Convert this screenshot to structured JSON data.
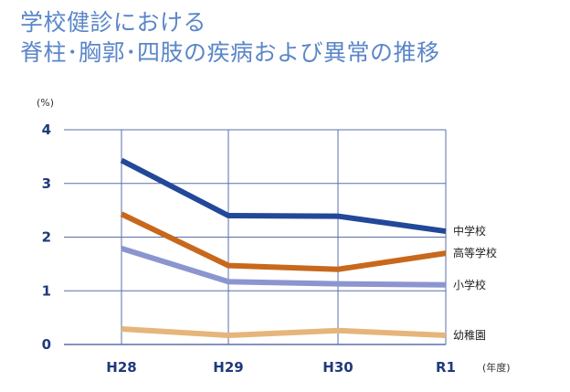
{
  "title": {
    "line1": "学校健診における",
    "line2": "脊柱･胸郭･四肢の疾病および異常の推移"
  },
  "colors": {
    "title": "#5a86c8",
    "axis_text": "#1f3a7a",
    "grid": "#5b6fa8"
  },
  "chart_data": {
    "type": "line",
    "title": "学校健診における 脊柱･胸郭･四肢の疾病および異常の推移",
    "ylabel": "(%)",
    "xlabel": "(年度)",
    "categories": [
      "H28",
      "H29",
      "H30",
      "R1"
    ],
    "yticks": [
      "0",
      "1",
      "2",
      "3",
      "4"
    ],
    "ylim": [
      0,
      4
    ],
    "grid": true,
    "legend": "inline-right",
    "series": [
      {
        "name": "中学校",
        "values": [
          3.43,
          2.4,
          2.39,
          2.11
        ],
        "color": "#22489a"
      },
      {
        "name": "高等学校",
        "values": [
          2.43,
          1.47,
          1.4,
          1.7
        ],
        "color": "#c8681c"
      },
      {
        "name": "小学校",
        "values": [
          1.79,
          1.17,
          1.13,
          1.11
        ],
        "color": "#8b95cf"
      },
      {
        "name": "幼稚園",
        "values": [
          0.29,
          0.17,
          0.26,
          0.17
        ],
        "color": "#e5b57c"
      }
    ]
  }
}
